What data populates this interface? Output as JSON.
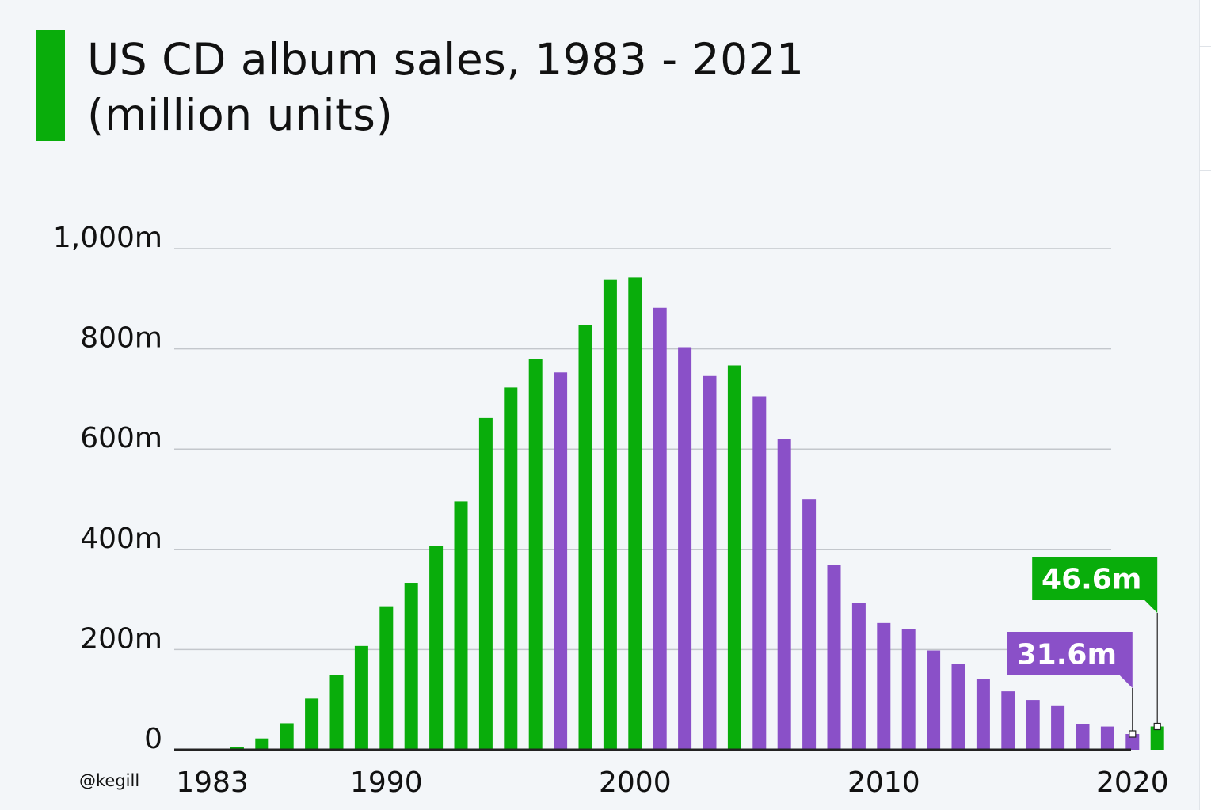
{
  "chart_data": {
    "type": "bar",
    "title": "US CD album sales, 1983 - 2021",
    "subtitle": "(million units)",
    "x": [
      1983,
      1984,
      1985,
      1986,
      1987,
      1988,
      1989,
      1990,
      1991,
      1992,
      1993,
      1994,
      1995,
      1996,
      1997,
      1998,
      1999,
      2000,
      2001,
      2002,
      2003,
      2004,
      2005,
      2006,
      2007,
      2008,
      2009,
      2010,
      2011,
      2012,
      2013,
      2014,
      2015,
      2016,
      2017,
      2018,
      2019,
      2020,
      2021
    ],
    "values": [
      0.8,
      5.8,
      22.6,
      53,
      102.1,
      149.7,
      207.2,
      286.5,
      333.3,
      407.5,
      495.4,
      662.1,
      722.9,
      778.9,
      753.1,
      847,
      938.9,
      942.5,
      881.9,
      803.3,
      746,
      767,
      705.4,
      619.7,
      500.5,
      368.4,
      292.9,
      253,
      240.8,
      198.2,
      172.2,
      140.8,
      116.7,
      99.4,
      87.2,
      52,
      46.5,
      31.6,
      46.6
    ],
    "bar_colors": [
      "#09ad0b",
      "#09ad0b",
      "#09ad0b",
      "#09ad0b",
      "#09ad0b",
      "#09ad0b",
      "#09ad0b",
      "#09ad0b",
      "#09ad0b",
      "#09ad0b",
      "#09ad0b",
      "#09ad0b",
      "#09ad0b",
      "#09ad0b",
      "#8a50c8",
      "#09ad0b",
      "#09ad0b",
      "#09ad0b",
      "#8a50c8",
      "#8a50c8",
      "#8a50c8",
      "#09ad0b",
      "#8a50c8",
      "#8a50c8",
      "#8a50c8",
      "#8a50c8",
      "#8a50c8",
      "#8a50c8",
      "#8a50c8",
      "#8a50c8",
      "#8a50c8",
      "#8a50c8",
      "#8a50c8",
      "#8a50c8",
      "#8a50c8",
      "#8a50c8",
      "#8a50c8",
      "#8a50c8",
      "#09ad0b"
    ],
    "ylim": [
      0,
      1000
    ],
    "yticks": [
      0,
      200,
      400,
      600,
      800,
      1000
    ],
    "ytick_labels": [
      "0",
      "200m",
      "400m",
      "600m",
      "800m",
      "1,000m"
    ],
    "xticks": [
      1983,
      1990,
      2000,
      2010,
      2020
    ],
    "xtick_labels": [
      "1983",
      "1990",
      "2000",
      "2010",
      "2020"
    ],
    "grid": true,
    "annotations": [
      {
        "x": 2020,
        "text": "31.6m",
        "color": "#8a50c8"
      },
      {
        "x": 2021,
        "text": "46.6m",
        "color": "#09ad0b"
      }
    ],
    "credit": "@kegill",
    "colors": {
      "green": "#09ad0b",
      "purple": "#8a50c8",
      "grid": "#c3c7cc",
      "background": "#f3f6f9"
    }
  }
}
